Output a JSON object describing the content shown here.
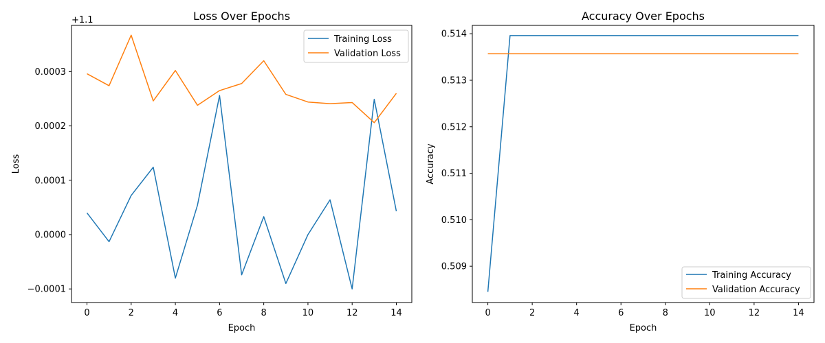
{
  "chart_data": [
    {
      "type": "line",
      "title": "Loss Over Epochs",
      "xlabel": "Epoch",
      "ylabel": "Loss",
      "offset_label": "+1.1",
      "offset": 1.1,
      "x": [
        0,
        1,
        2,
        3,
        4,
        5,
        6,
        7,
        8,
        9,
        10,
        11,
        12,
        13,
        14
      ],
      "xlim": [
        -0.7,
        14.7
      ],
      "ylim": [
        -0.000125,
        0.000385
      ],
      "xticks": [
        0,
        2,
        4,
        6,
        8,
        10,
        12,
        14
      ],
      "xtick_labels": [
        "0",
        "2",
        "4",
        "6",
        "8",
        "10",
        "12",
        "14"
      ],
      "yticks": [
        -0.0001,
        0.0,
        0.0001,
        0.0002,
        0.0003
      ],
      "ytick_labels": [
        "−0.0001",
        "0.0000",
        "0.0001",
        "0.0002",
        "0.0003"
      ],
      "legend_position": "top-right",
      "series": [
        {
          "name": "Training Loss",
          "color": "#1f77b4",
          "values": [
            4e-05,
            -1.3e-05,
            7.2e-05,
            0.000124,
            -8e-05,
            5.4e-05,
            0.000256,
            -7.4e-05,
            3.3e-05,
            -9e-05,
            0.0,
            6.4e-05,
            -0.0001,
            0.000249,
            4.3e-05
          ]
        },
        {
          "name": "Validation Loss",
          "color": "#ff7f0e",
          "values": [
            0.000296,
            0.000274,
            0.000367,
            0.000246,
            0.000302,
            0.000238,
            0.000265,
            0.000278,
            0.00032,
            0.000258,
            0.000244,
            0.000241,
            0.000243,
            0.000206,
            0.00026
          ]
        }
      ]
    },
    {
      "type": "line",
      "title": "Accuracy Over Epochs",
      "xlabel": "Epoch",
      "ylabel": "Accuracy",
      "x": [
        0,
        1,
        2,
        3,
        4,
        5,
        6,
        7,
        8,
        9,
        10,
        11,
        12,
        13,
        14
      ],
      "xlim": [
        -0.7,
        14.7
      ],
      "ylim": [
        0.50822,
        0.51418
      ],
      "xticks": [
        0,
        2,
        4,
        6,
        8,
        10,
        12,
        14
      ],
      "xtick_labels": [
        "0",
        "2",
        "4",
        "6",
        "8",
        "10",
        "12",
        "14"
      ],
      "yticks": [
        0.509,
        0.51,
        0.511,
        0.512,
        0.513,
        0.514
      ],
      "ytick_labels": [
        "0.509",
        "0.510",
        "0.511",
        "0.512",
        "0.513",
        "0.514"
      ],
      "legend_position": "lower-right",
      "series": [
        {
          "name": "Training Accuracy",
          "color": "#1f77b4",
          "values": [
            0.50845,
            0.51396,
            0.51396,
            0.51396,
            0.51396,
            0.51396,
            0.51396,
            0.51396,
            0.51396,
            0.51396,
            0.51396,
            0.51396,
            0.51396,
            0.51396,
            0.51396
          ]
        },
        {
          "name": "Validation Accuracy",
          "color": "#ff7f0e",
          "values": [
            0.51357,
            0.51357,
            0.51357,
            0.51357,
            0.51357,
            0.51357,
            0.51357,
            0.51357,
            0.51357,
            0.51357,
            0.51357,
            0.51357,
            0.51357,
            0.51357,
            0.51357
          ]
        }
      ]
    }
  ]
}
